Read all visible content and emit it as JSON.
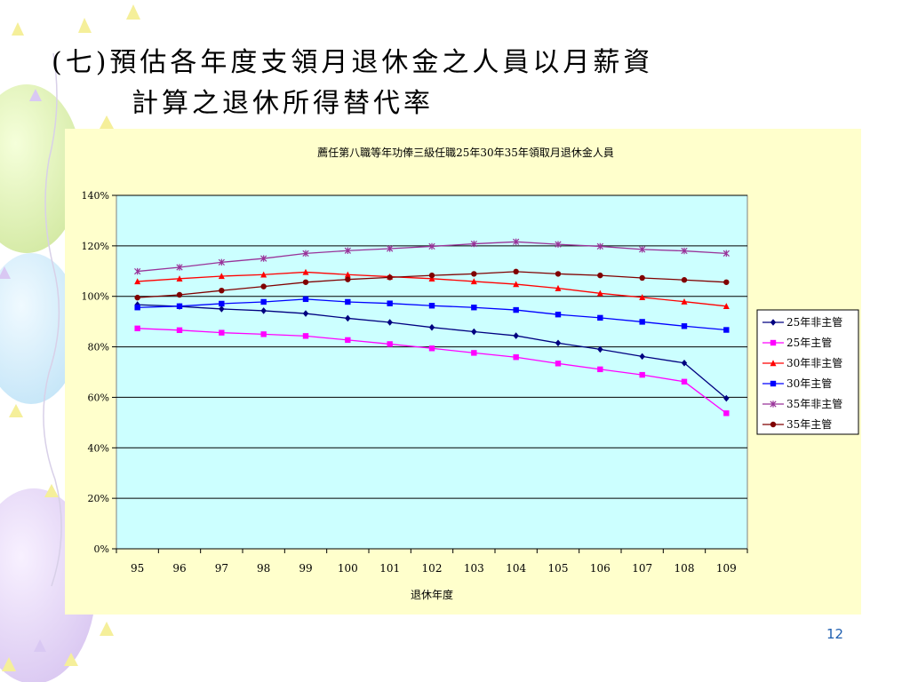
{
  "slide": {
    "title_line1": "(七)預估各年度支領月退休金之人員以月薪資",
    "title_line2": "計算之退休所得替代率",
    "page_number": "12"
  },
  "colors": {
    "plot_bg": "#ccffff",
    "panel_bg": "#ffffcc"
  },
  "chart_data": {
    "type": "line",
    "title": "薦任第八職等年功俸三級任職25年30年35年領取月退休金人員",
    "xlabel": "退休年度",
    "ylabel": "",
    "categories": [
      "95",
      "96",
      "97",
      "98",
      "99",
      "100",
      "101",
      "102",
      "103",
      "104",
      "105",
      "106",
      "107",
      "108",
      "109"
    ],
    "ylim": [
      0,
      140
    ],
    "yticks": [
      "0%",
      "20%",
      "40%",
      "60%",
      "80%",
      "100%",
      "120%",
      "140%"
    ],
    "grid": "horizontal",
    "legend_position": "right",
    "series": [
      {
        "name": "25年非主管",
        "color": "#000080",
        "marker": "diamond",
        "values": [
          96.7,
          96.0,
          95.0,
          94.3,
          93.2,
          91.3,
          89.7,
          87.7,
          86.0,
          84.4,
          81.5,
          79.0,
          76.2,
          73.6,
          59.6
        ]
      },
      {
        "name": "25年主管",
        "color": "#ff00ff",
        "marker": "square",
        "values": [
          87.3,
          86.6,
          85.6,
          85.0,
          84.3,
          82.7,
          81.1,
          79.4,
          77.6,
          75.9,
          73.4,
          71.1,
          68.9,
          66.2,
          53.7
        ]
      },
      {
        "name": "30年非主管",
        "color": "#ff0000",
        "marker": "triangle",
        "values": [
          105.9,
          107.0,
          108.0,
          108.6,
          109.6,
          108.6,
          107.8,
          107.0,
          105.9,
          104.8,
          103.2,
          101.2,
          99.6,
          97.9,
          96.1
        ]
      },
      {
        "name": "30年主管",
        "color": "#0000ff",
        "marker": "square",
        "values": [
          95.6,
          96.1,
          97.1,
          97.8,
          98.9,
          97.8,
          97.2,
          96.3,
          95.6,
          94.6,
          92.8,
          91.5,
          89.9,
          88.2,
          86.7
        ]
      },
      {
        "name": "35年非主管",
        "color": "#993399",
        "marker": "star",
        "values": [
          109.9,
          111.5,
          113.5,
          115.0,
          117.0,
          118.1,
          118.9,
          119.8,
          120.8,
          121.6,
          120.6,
          119.8,
          118.6,
          118.0,
          117.0
        ]
      },
      {
        "name": "35年主管",
        "color": "#800000",
        "marker": "circle",
        "values": [
          99.5,
          100.6,
          102.3,
          103.9,
          105.6,
          106.7,
          107.5,
          108.3,
          108.9,
          109.8,
          108.9,
          108.3,
          107.3,
          106.5,
          105.6
        ]
      }
    ]
  }
}
